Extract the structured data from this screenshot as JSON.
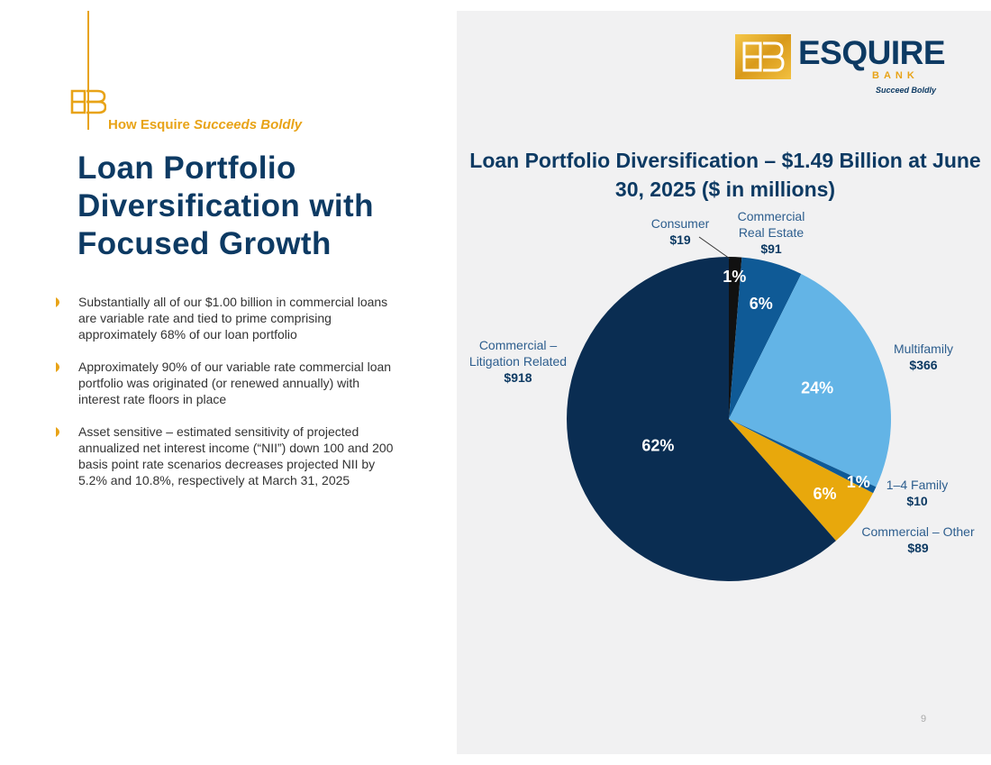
{
  "header": {
    "tagline_prefix": "How Esquire ",
    "tagline_emphasis": "Succeeds Boldly"
  },
  "title": "Loan Portfolio Diversification with Focused Growth",
  "bullets": [
    "Substantially all of our $1.00 billion in commercial loans are variable rate and tied to prime comprising approximately 68% of our loan portfolio",
    "Approximately 90% of our variable rate commercial loan portfolio was originated (or renewed annually) with interest rate floors in place",
    "Asset sensitive – estimated sensitivity of projected annualized net interest income (“NII”) down 100 and 200 basis point rate scenarios decreases projected NII by 5.2% and 10.8%, respectively at March 31, 2025"
  ],
  "logo": {
    "word": "ESQUIRE",
    "bank": "BANK",
    "tag": "Succeed Boldly"
  },
  "page_number": "9",
  "colors": {
    "navy": "#0d3a63",
    "gold": "#e8a317",
    "consumer": "#111111",
    "commercial_real_estate": "#0f5a96",
    "multifamily": "#63b4e6",
    "family_1_4": "#0f5a96",
    "commercial_other": "#e8a80c",
    "litigation": "#0a2d52"
  },
  "chart_data": {
    "type": "pie",
    "title": "Loan Portfolio Diversification – $1.49 Billion at June 30, 2025 ($ in millions)",
    "total": 1493,
    "start_angle_deg": 0,
    "direction": "clockwise",
    "slices": [
      {
        "key": "consumer",
        "label": "Consumer",
        "value": 19,
        "value_label": "$19",
        "pct_label": "1%",
        "color": "#111111",
        "pct_color": "#ffffff"
      },
      {
        "key": "commercial_real_estate",
        "label": "Commercial Real Estate",
        "value": 91,
        "value_label": "$91",
        "pct_label": "6%",
        "color": "#0f5a96",
        "pct_color": "#ffffff"
      },
      {
        "key": "multifamily",
        "label": "Multifamily",
        "value": 366,
        "value_label": "$366",
        "pct_label": "24%",
        "color": "#63b4e6",
        "pct_color": "#ffffff"
      },
      {
        "key": "family_1_4",
        "label": "1–4 Family",
        "value": 10,
        "value_label": "$10",
        "pct_label": "1%",
        "color": "#0f5a96",
        "pct_color": "#ffffff"
      },
      {
        "key": "commercial_other",
        "label": "Commercial – Other",
        "value": 89,
        "value_label": "$89",
        "pct_label": "6%",
        "color": "#e8a80c",
        "pct_color": "#ffffff"
      },
      {
        "key": "litigation",
        "label": "Commercial – Litigation Related",
        "value": 918,
        "value_label": "$918",
        "pct_label": "62%",
        "color": "#0a2d52",
        "pct_color": "#ffffff"
      }
    ],
    "labels": {
      "consumer": "Consumer",
      "commercial_real_estate_line1": "Commercial",
      "commercial_real_estate_line2": "Real Estate",
      "multifamily": "Multifamily",
      "family_1_4": "1–4 Family",
      "commercial_other": "Commercial – Other",
      "litigation_line1": "Commercial –",
      "litigation_line2": "Litigation Related"
    }
  }
}
